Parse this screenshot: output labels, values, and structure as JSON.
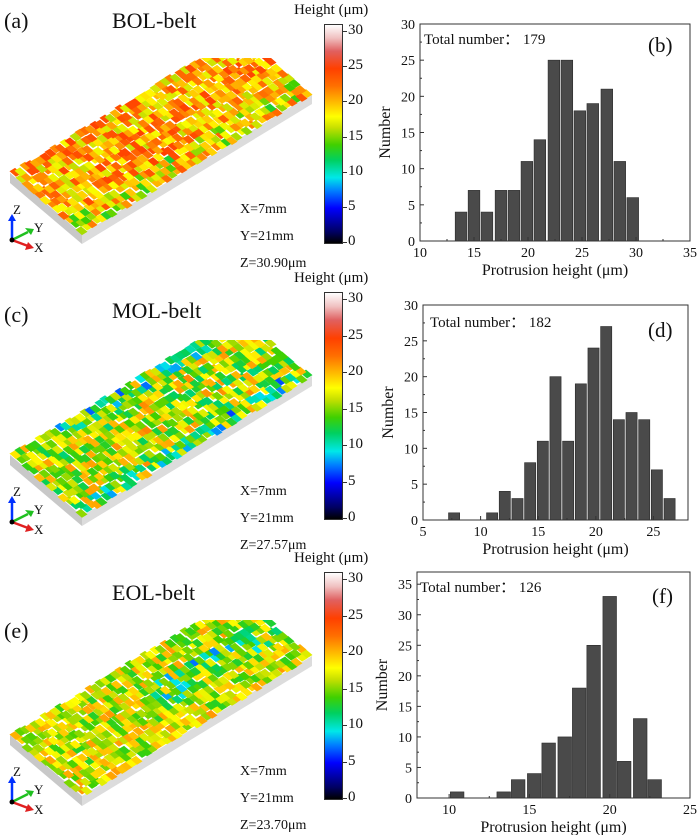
{
  "colorbar": {
    "title": "Height (μm)",
    "ticks": [
      "0",
      "5",
      "10",
      "15",
      "20",
      "25",
      "30"
    ],
    "range": [
      0,
      31
    ]
  },
  "panels": [
    {
      "label": "(a)",
      "title": "BOL-belt",
      "dims": [
        "X=7mm",
        "Y=21mm",
        "Z=30.90μm"
      ],
      "axes": {
        "z": "Z",
        "y": "Y",
        "x": "X"
      },
      "dominant_colors": [
        "#e06030",
        "#f0a020",
        "#c8d820"
      ]
    },
    {
      "label": "(c)",
      "title": "MOL-belt",
      "dims": [
        "X=7mm",
        "Y=21mm",
        "Z=27.57μm"
      ],
      "axes": {
        "z": "Z",
        "y": "Y",
        "x": "X"
      },
      "dominant_colors": [
        "#d8d020",
        "#40c0a0",
        "#e07030"
      ]
    },
    {
      "label": "(e)",
      "title": "EOL-belt",
      "dims": [
        "X=7mm",
        "Y=21mm",
        "Z=23.70μm"
      ],
      "axes": {
        "z": "Z",
        "y": "Y",
        "x": "X"
      },
      "dominant_colors": [
        "#c8c820",
        "#e0a030",
        "#40c0a0"
      ]
    }
  ],
  "chart_data": [
    {
      "type": "bar",
      "panel_label": "(b)",
      "annotation": "Total number：  179",
      "xlabel": "Protrusion height (μm)",
      "ylabel": "Number",
      "xlim": [
        10,
        35
      ],
      "ylim": [
        0,
        30
      ],
      "xticks": [
        10,
        15,
        20,
        25,
        30,
        35
      ],
      "yticks": [
        0,
        5,
        10,
        15,
        20,
        25,
        30
      ],
      "bin_width": 1.22,
      "x": [
        13.8,
        15.0,
        16.2,
        17.5,
        18.7,
        19.9,
        21.1,
        22.4,
        23.6,
        24.8,
        26.0,
        27.3,
        28.5,
        29.7
      ],
      "values": [
        4,
        7,
        4,
        7,
        7,
        11,
        14,
        25,
        25,
        18,
        19,
        21,
        11,
        6
      ],
      "bar_color": "#4a4a4a"
    },
    {
      "type": "bar",
      "panel_label": "(d)",
      "annotation": "Total number：  182",
      "xlabel": "Protrusion height (μm)",
      "ylabel": "Number",
      "xlim": [
        5,
        28
      ],
      "ylim": [
        0,
        30
      ],
      "xticks": [
        5,
        10,
        15,
        20,
        25
      ],
      "yticks": [
        0,
        5,
        10,
        15,
        20,
        25,
        30
      ],
      "bin_width": 1.1,
      "x": [
        7.7,
        11.0,
        12.1,
        13.2,
        14.3,
        15.4,
        16.5,
        17.6,
        18.7,
        19.8,
        20.9,
        22.0,
        23.1,
        24.2,
        25.3,
        26.4
      ],
      "values": [
        1,
        1,
        4,
        3,
        8,
        11,
        20,
        11,
        19,
        24,
        27,
        14,
        15,
        14,
        7,
        3
      ],
      "bar_color": "#4a4a4a"
    },
    {
      "type": "bar",
      "panel_label": "(f)",
      "annotation": "Total number：  126",
      "xlabel": "Protrusion height (μm)",
      "ylabel": "Number",
      "xlim": [
        8,
        25
      ],
      "ylim": [
        0,
        37
      ],
      "xticks": [
        10,
        15,
        20,
        25
      ],
      "yticks": [
        0,
        5,
        10,
        15,
        20,
        25,
        30,
        35
      ],
      "bin_width": 0.94,
      "x": [
        10.5,
        13.4,
        14.3,
        15.3,
        16.2,
        17.2,
        18.1,
        19.0,
        20.0,
        20.9,
        21.9,
        22.8
      ],
      "values": [
        1,
        1,
        3,
        4,
        9,
        10,
        18,
        25,
        33,
        6,
        13,
        3
      ],
      "bar_color": "#4a4a4a"
    }
  ]
}
